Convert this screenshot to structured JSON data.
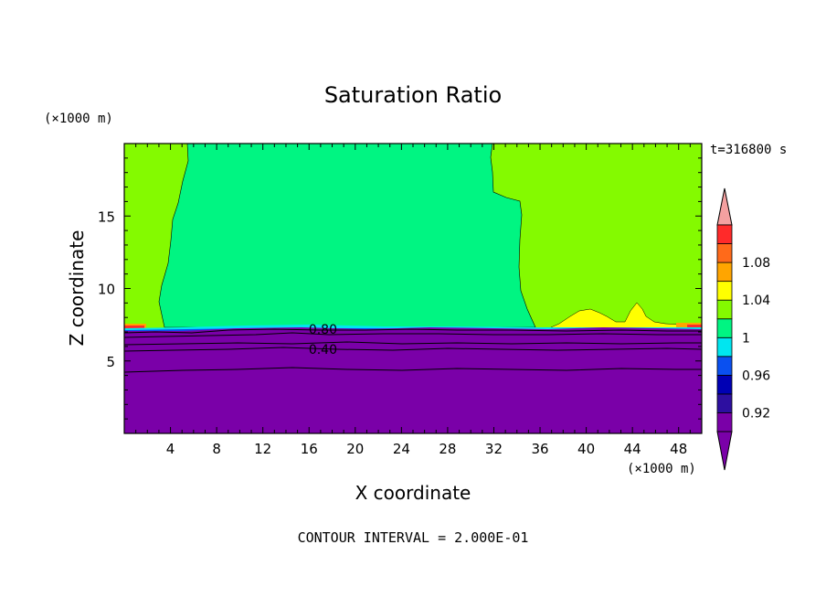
{
  "chart_data": {
    "type": "heatmap",
    "title": "Saturation Ratio",
    "xlabel": "X coordinate",
    "ylabel": "Z coordinate",
    "x_unit": "(×1000 m)",
    "y_unit": "(×1000 m)",
    "time_label": "t=316800 s",
    "footer": "CONTOUR INTERVAL = 2.000E-01",
    "xlim": [
      0,
      50
    ],
    "ylim": [
      0,
      20
    ],
    "x_ticks": [
      4,
      8,
      12,
      16,
      20,
      24,
      28,
      32,
      36,
      40,
      44,
      48
    ],
    "y_ticks": [
      5,
      10,
      15
    ],
    "colorbar": {
      "labels": [
        "1.08",
        "1.04",
        "1",
        "0.96",
        "0.92"
      ],
      "bands": [
        {
          "color": "#7a00a8"
        },
        {
          "color": "#2d0fa0"
        },
        {
          "color": "#0000b4"
        },
        {
          "color": "#0a50f0"
        },
        {
          "color": "#00e6f0"
        },
        {
          "color": "#00f582"
        },
        {
          "color": "#84fa00"
        },
        {
          "color": "#ffff00"
        },
        {
          "color": "#ffa500"
        },
        {
          "color": "#ff6a1a"
        },
        {
          "color": "#ff2a2a"
        }
      ],
      "top_arrow_color": "#f4a0a0",
      "bottom_arrow_color": "#7a00a8"
    },
    "contour_labels": [
      {
        "text": "0.80",
        "x": 17.2,
        "z": 7.2
      },
      {
        "text": "0.40",
        "x": 17.2,
        "z": 5.8
      }
    ],
    "regions": [
      {
        "name": "subsaturated-lower-layer",
        "band": "< 0.92",
        "color": "#7a00a8",
        "z_range": [
          0,
          7.2
        ]
      },
      {
        "name": "near-saturation-core",
        "band": "0.98-1.00",
        "color": "#00f582",
        "x_range": [
          5.3,
          35.6
        ],
        "z_range": [
          7.2,
          20
        ]
      },
      {
        "name": "supersaturated-upper-left",
        "band": "1.00-1.02",
        "color": "#84fa00",
        "x_range": [
          0,
          5.5
        ]
      },
      {
        "name": "supersaturated-upper-right",
        "band": "1.00-1.02",
        "color": "#84fa00",
        "x_range": [
          31.7,
          50
        ]
      },
      {
        "name": "supersaturation-patches",
        "band": "1.02-1.04",
        "color": "#ffff00",
        "x_range": [
          37.5,
          47
        ]
      }
    ]
  }
}
